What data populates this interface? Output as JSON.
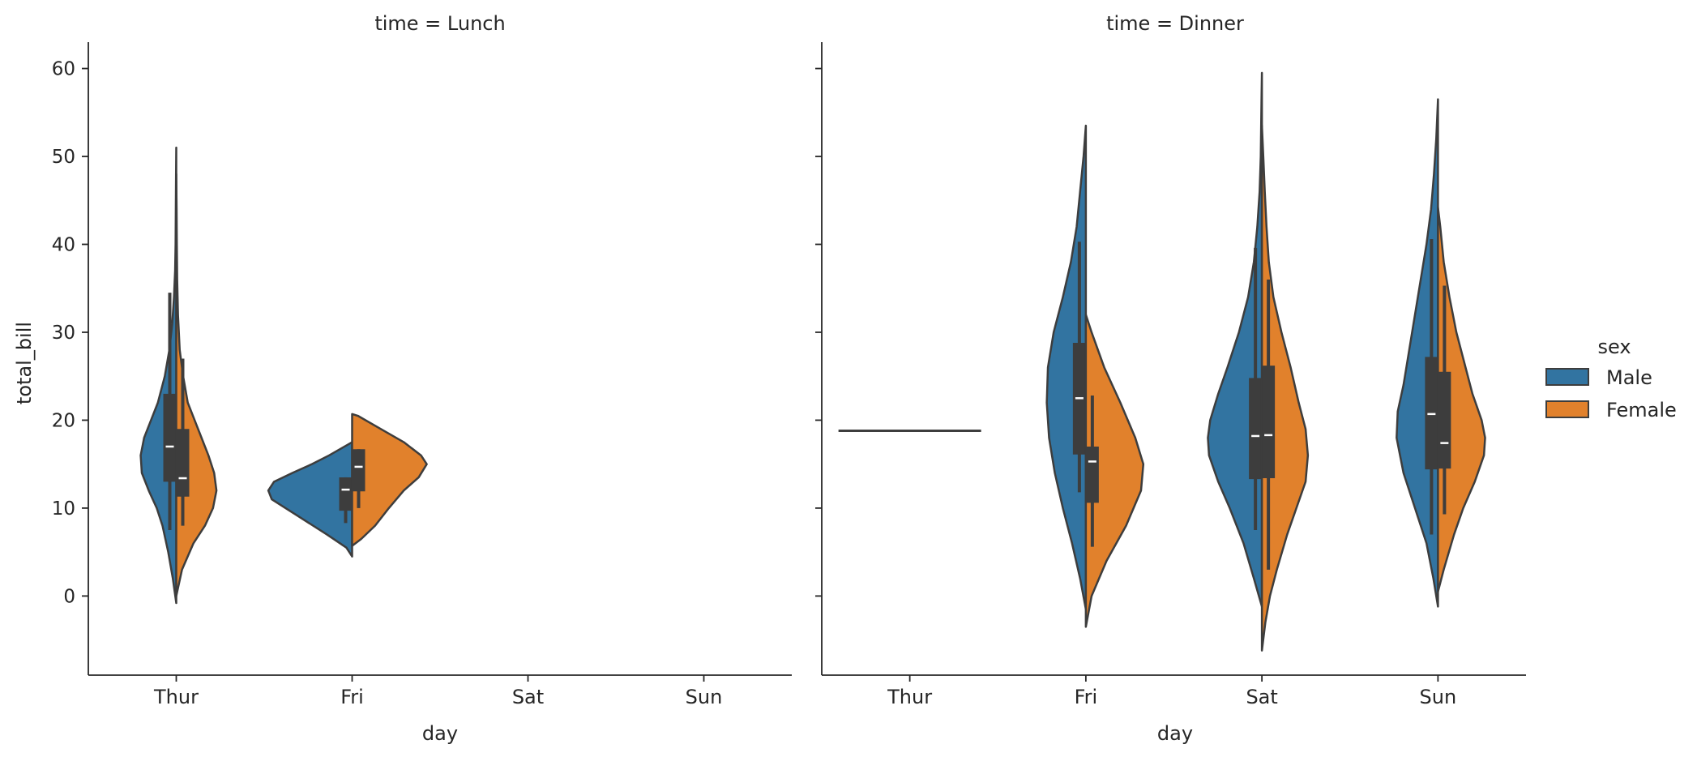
{
  "chart_data": {
    "type": "violin",
    "split": true,
    "ylabel": "total_bill",
    "xlabel": "day",
    "categories": [
      "Thur",
      "Fri",
      "Sat",
      "Sun"
    ],
    "y_ticks": [
      0,
      10,
      20,
      30,
      40,
      50,
      60
    ],
    "ylim": [
      -9,
      63
    ],
    "grid": false,
    "legend": {
      "title": "sex",
      "placement": "right",
      "entries": [
        {
          "name": "Male",
          "color": "#3274a1"
        },
        {
          "name": "Female",
          "color": "#e1812c"
        }
      ]
    },
    "facets": [
      {
        "title": "time = Lunch",
        "xlabel": "day",
        "violins": [
          {
            "day": "Thur",
            "side": "left",
            "series": "Male",
            "kde": [
              [
                -0.8,
                0
              ],
              [
                2,
                0.03
              ],
              [
                5,
                0.07
              ],
              [
                8,
                0.12
              ],
              [
                10,
                0.17
              ],
              [
                12,
                0.24
              ],
              [
                14,
                0.3
              ],
              [
                16,
                0.31
              ],
              [
                18,
                0.28
              ],
              [
                20,
                0.22
              ],
              [
                22,
                0.16
              ],
              [
                25,
                0.1
              ],
              [
                28,
                0.06
              ],
              [
                31,
                0.035
              ],
              [
                34,
                0.02
              ],
              [
                37,
                0.01
              ],
              [
                40,
                0.006
              ],
              [
                44,
                0.004
              ],
              [
                48,
                0.002
              ],
              [
                51,
                0
              ]
            ],
            "box": [
              13,
              23
            ],
            "whisker": [
              7.5,
              34.5
            ],
            "median": 17
          },
          {
            "day": "Thur",
            "side": "right",
            "series": "Female",
            "kde": [
              [
                0,
                0
              ],
              [
                3,
                0.05
              ],
              [
                6,
                0.15
              ],
              [
                8,
                0.25
              ],
              [
                10,
                0.32
              ],
              [
                12,
                0.35
              ],
              [
                14,
                0.33
              ],
              [
                16,
                0.28
              ],
              [
                18,
                0.22
              ],
              [
                20,
                0.16
              ],
              [
                22,
                0.1
              ],
              [
                25,
                0.06
              ],
              [
                28,
                0.03
              ],
              [
                32,
                0.015
              ],
              [
                36,
                0.008
              ],
              [
                40,
                0.005
              ],
              [
                44,
                0.003
              ],
              [
                48,
                0
              ]
            ],
            "box": [
              11.3,
              19
            ],
            "whisker": [
              8,
              27
            ],
            "median": 13.4
          },
          {
            "day": "Fri",
            "side": "left",
            "series": "Male",
            "kde": [
              [
                4.5,
                0
              ],
              [
                5.5,
                0.05
              ],
              [
                7,
                0.22
              ],
              [
                8.5,
                0.4
              ],
              [
                10,
                0.58
              ],
              [
                11,
                0.7
              ],
              [
                12,
                0.73
              ],
              [
                13,
                0.68
              ],
              [
                14,
                0.52
              ],
              [
                15,
                0.35
              ],
              [
                16,
                0.2
              ],
              [
                17.2,
                0.04
              ],
              [
                17.5,
                0
              ]
            ],
            "box": [
              9.7,
              13.5
            ],
            "whisker": [
              8.3,
              13.5
            ],
            "median": 12.1
          },
          {
            "day": "Fri",
            "side": "right",
            "series": "Female",
            "kde": [
              [
                5.7,
                0
              ],
              [
                6.5,
                0.08
              ],
              [
                8,
                0.2
              ],
              [
                10,
                0.32
              ],
              [
                12,
                0.45
              ],
              [
                13.5,
                0.58
              ],
              [
                15,
                0.65
              ],
              [
                16,
                0.6
              ],
              [
                17.5,
                0.45
              ],
              [
                19,
                0.25
              ],
              [
                20.5,
                0.05
              ],
              [
                20.7,
                0
              ]
            ],
            "box": [
              11.9,
              16.7
            ],
            "whisker": [
              10,
              16.7
            ],
            "median": 14.7
          }
        ]
      },
      {
        "title": "time = Dinner",
        "xlabel": "day",
        "violins": [
          {
            "day": "Thur",
            "side": "both",
            "series": "Female",
            "single_value": 18.8
          },
          {
            "day": "Fri",
            "side": "left",
            "series": "Male",
            "kde": [
              [
                -1.5,
                0
              ],
              [
                2,
                0.05
              ],
              [
                6,
                0.12
              ],
              [
                10,
                0.2
              ],
              [
                14,
                0.27
              ],
              [
                18,
                0.32
              ],
              [
                22,
                0.34
              ],
              [
                26,
                0.33
              ],
              [
                30,
                0.28
              ],
              [
                34,
                0.2
              ],
              [
                38,
                0.13
              ],
              [
                42,
                0.08
              ],
              [
                46,
                0.05
              ],
              [
                50,
                0.02
              ],
              [
                53.5,
                0
              ]
            ],
            "box": [
              16.1,
              28.8
            ],
            "whisker": [
              11.8,
              40.3
            ],
            "median": 22.5
          },
          {
            "day": "Fri",
            "side": "right",
            "series": "Female",
            "kde": [
              [
                -3.5,
                0
              ],
              [
                0,
                0.05
              ],
              [
                4,
                0.18
              ],
              [
                8,
                0.35
              ],
              [
                12,
                0.48
              ],
              [
                15,
                0.5
              ],
              [
                18,
                0.43
              ],
              [
                22,
                0.3
              ],
              [
                26,
                0.16
              ],
              [
                30,
                0.05
              ],
              [
                32,
                0
              ]
            ],
            "box": [
              10.6,
              17
            ],
            "whisker": [
              5.6,
              22.8
            ],
            "median": 15.3
          },
          {
            "day": "Sat",
            "side": "left",
            "series": "Male",
            "kde": [
              [
                -1.2,
                0
              ],
              [
                2,
                0.07
              ],
              [
                6,
                0.16
              ],
              [
                10,
                0.28
              ],
              [
                13,
                0.38
              ],
              [
                16,
                0.46
              ],
              [
                18,
                0.47
              ],
              [
                20,
                0.45
              ],
              [
                23,
                0.38
              ],
              [
                26,
                0.3
              ],
              [
                30,
                0.2
              ],
              [
                34,
                0.12
              ],
              [
                38,
                0.07
              ],
              [
                42,
                0.04
              ],
              [
                46,
                0.02
              ],
              [
                50,
                0.01
              ],
              [
                54,
                0.006
              ],
              [
                57,
                0.003
              ],
              [
                59.5,
                0
              ]
            ],
            "box": [
              13.3,
              24.8
            ],
            "whisker": [
              7.5,
              39.6
            ],
            "median": 18.2
          },
          {
            "day": "Sat",
            "side": "right",
            "series": "Female",
            "kde": [
              [
                -6.2,
                0
              ],
              [
                -3,
                0.03
              ],
              [
                0,
                0.07
              ],
              [
                3,
                0.13
              ],
              [
                7,
                0.22
              ],
              [
                10,
                0.3
              ],
              [
                13,
                0.38
              ],
              [
                16,
                0.4
              ],
              [
                19,
                0.38
              ],
              [
                22,
                0.32
              ],
              [
                26,
                0.25
              ],
              [
                30,
                0.17
              ],
              [
                34,
                0.1
              ],
              [
                38,
                0.06
              ],
              [
                42,
                0.04
              ],
              [
                46,
                0.025
              ],
              [
                50,
                0.012
              ],
              [
                53.5,
                0
              ]
            ],
            "box": [
              13.4,
              26.2
            ],
            "whisker": [
              3,
              36
            ],
            "median": 18.3
          },
          {
            "day": "Sun",
            "side": "left",
            "series": "Male",
            "kde": [
              [
                -1.2,
                0
              ],
              [
                2,
                0.04
              ],
              [
                6,
                0.1
              ],
              [
                10,
                0.2
              ],
              [
                14,
                0.3
              ],
              [
                18,
                0.36
              ],
              [
                21,
                0.35
              ],
              [
                24,
                0.3
              ],
              [
                28,
                0.25
              ],
              [
                32,
                0.2
              ],
              [
                36,
                0.15
              ],
              [
                40,
                0.1
              ],
              [
                44,
                0.06
              ],
              [
                48,
                0.035
              ],
              [
                52,
                0.015
              ],
              [
                56.5,
                0
              ]
            ],
            "box": [
              14.4,
              27.2
            ],
            "whisker": [
              7,
              40.6
            ],
            "median": 20.7
          },
          {
            "day": "Sun",
            "side": "right",
            "series": "Female",
            "kde": [
              [
                0.5,
                0
              ],
              [
                3,
                0.05
              ],
              [
                7,
                0.14
              ],
              [
                10,
                0.22
              ],
              [
                13,
                0.32
              ],
              [
                16,
                0.4
              ],
              [
                18,
                0.41
              ],
              [
                20,
                0.38
              ],
              [
                23,
                0.3
              ],
              [
                27,
                0.22
              ],
              [
                30,
                0.16
              ],
              [
                34,
                0.1
              ],
              [
                38,
                0.05
              ],
              [
                42,
                0.02
              ],
              [
                44.2,
                0
              ]
            ],
            "box": [
              14.5,
              25.5
            ],
            "whisker": [
              9.3,
              35.3
            ],
            "median": 17.4
          }
        ]
      }
    ]
  }
}
